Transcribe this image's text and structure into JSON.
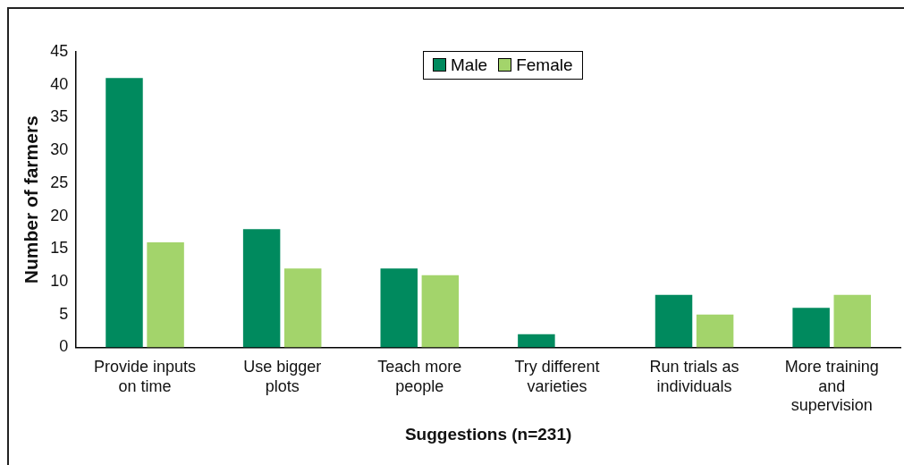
{
  "chart_data": {
    "type": "bar",
    "xlabel": "Suggestions (n=231)",
    "ylabel": "Number of farmers",
    "categories": [
      "Provide inputs on time",
      "Use bigger plots",
      "Teach more people",
      "Try different varieties",
      "Run trials as individuals",
      "More training and supervision"
    ],
    "series": [
      {
        "name": "Male",
        "color": "#008a5e",
        "values": [
          41,
          18,
          12,
          2,
          8,
          6
        ]
      },
      {
        "name": "Female",
        "color": "#a3d46b",
        "values": [
          16,
          12,
          11,
          0,
          5,
          8
        ]
      }
    ],
    "ylim": [
      0,
      45
    ],
    "yticks": [
      0,
      5,
      10,
      15,
      20,
      25,
      30,
      35,
      40,
      45
    ],
    "grid": false,
    "legend": "top"
  }
}
